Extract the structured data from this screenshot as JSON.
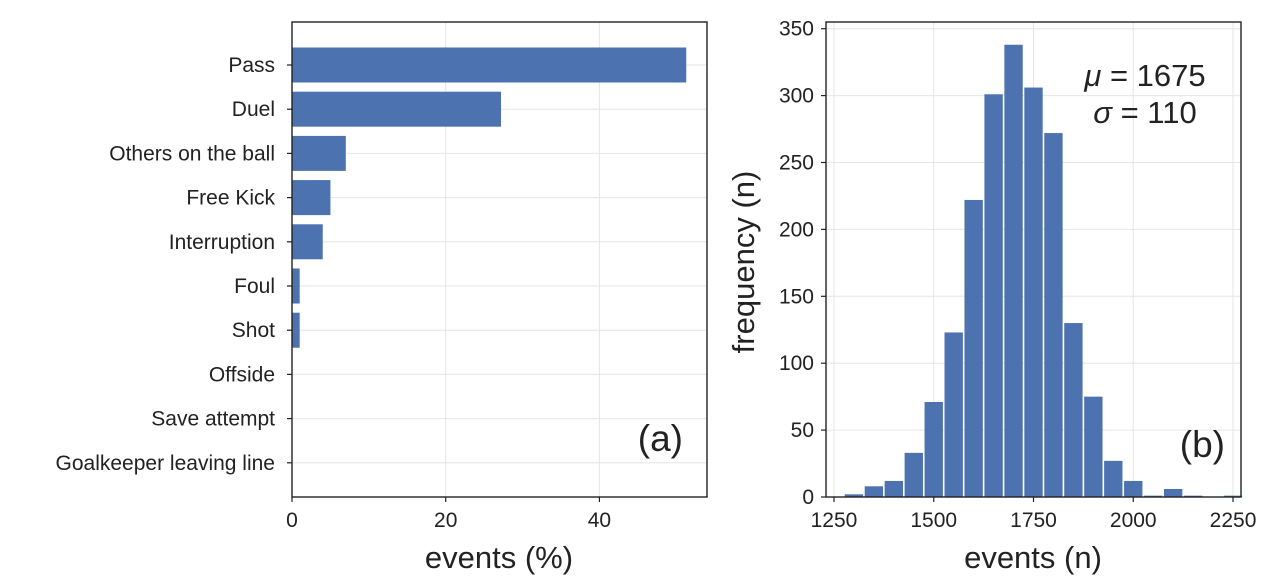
{
  "chart_data": [
    {
      "type": "bar",
      "orientation": "horizontal",
      "panel_label": "(a)",
      "categories": [
        "Pass",
        "Duel",
        "Others on the ball",
        "Free Kick",
        "Interruption",
        "Foul",
        "Shot",
        "Offside",
        "Save attempt",
        "Goalkeeper leaving line"
      ],
      "values": [
        51.3,
        27.2,
        7.0,
        5.0,
        4.0,
        1.0,
        1.0,
        0.1,
        0.1,
        0.1
      ],
      "xlabel": "events (%)",
      "ylabel": "",
      "xlim": [
        0,
        54
      ],
      "xticks": [
        0,
        20,
        40
      ],
      "grid": true,
      "color": "#4c72b0"
    },
    {
      "type": "bar",
      "subtype": "histogram",
      "panel_label": "(b)",
      "bins_start": 1275,
      "bin_width": 50,
      "counts": [
        2,
        8,
        12,
        33,
        71,
        123,
        222,
        301,
        338,
        306,
        272,
        130,
        75,
        27,
        12,
        1,
        6,
        1,
        0,
        1
      ],
      "xlabel": "events (n)",
      "ylabel": "frequency (n)",
      "xlim": [
        1230,
        2270
      ],
      "ylim": [
        0,
        355
      ],
      "xticks": [
        1250,
        1500,
        1750,
        2000,
        2250
      ],
      "yticks": [
        0,
        50,
        100,
        150,
        200,
        250,
        300,
        350
      ],
      "annotation": {
        "mu_label": "μ",
        "mu_value": "= 1675",
        "sigma_label": "σ",
        "sigma_value": "= 110"
      },
      "grid": true,
      "color": "#4c72b0"
    }
  ]
}
